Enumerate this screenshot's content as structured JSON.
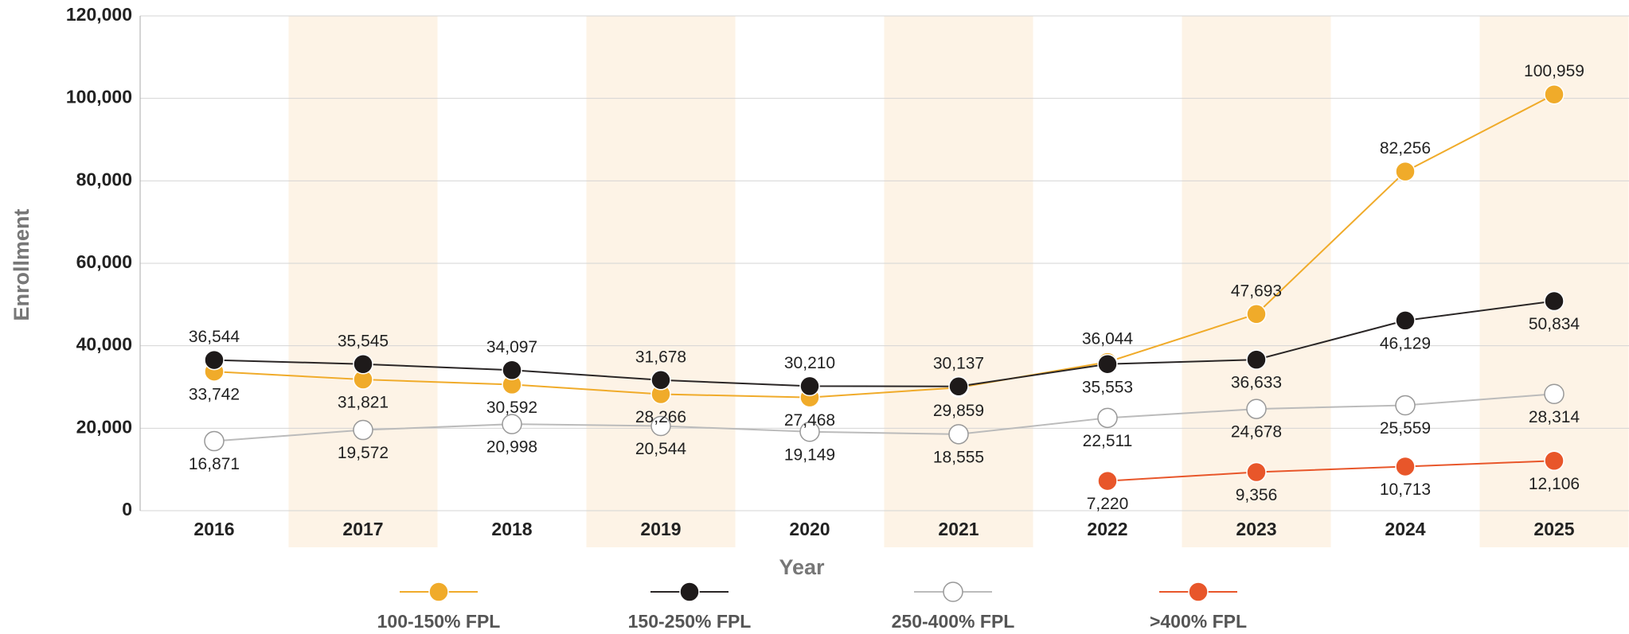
{
  "chart_data": {
    "type": "line",
    "x_label": "Year",
    "y_label": "Enrollment",
    "categories": [
      "2016",
      "2017",
      "2018",
      "2019",
      "2020",
      "2021",
      "2022",
      "2023",
      "2024",
      "2025"
    ],
    "ylim": [
      0,
      120000
    ],
    "yticks": [
      0,
      {
        "value": 20000,
        "label": "20,000"
      },
      {
        "value": 40000,
        "label": "40,000"
      },
      {
        "value": 60000,
        "label": "60,000"
      },
      {
        "value": 80000,
        "label": "80,000"
      },
      {
        "value": 100000,
        "label": "100,000"
      },
      {
        "value": 120000,
        "label": "120,000"
      }
    ],
    "grid": true,
    "legend": "bottom",
    "series": [
      {
        "name": "100-150% FPL",
        "color": "#f0ab2a",
        "marker_color": "#f0ab2a",
        "values": [
          33742,
          31821,
          30592,
          28266,
          27468,
          29859,
          36044,
          47693,
          82256,
          100959
        ],
        "value_labels": [
          "33,742",
          "31,821",
          "30,592",
          "28,266",
          "27,468",
          "29,859",
          "36,044",
          "47,693",
          "82,256",
          "100,959"
        ]
      },
      {
        "name": "150-250% FPL",
        "color": "#2a2626",
        "marker_color": "#1e1a1a",
        "values": [
          36544,
          35545,
          34097,
          31678,
          30210,
          30137,
          35553,
          36633,
          46129,
          50834
        ],
        "value_labels": [
          "36,544",
          "35,545",
          "34,097",
          "31,678",
          "30,210",
          "30,137",
          "35,553",
          "36,633",
          "46,129",
          "50,834"
        ]
      },
      {
        "name": "250-400% FPL",
        "color": "#bbbbbb",
        "marker_color": "#ffffff",
        "values": [
          16871,
          19572,
          20998,
          20544,
          19149,
          18555,
          22511,
          24678,
          25559,
          28314
        ],
        "value_labels": [
          "16,871",
          "19,572",
          "20,998",
          "20,544",
          "19,149",
          "18,555",
          "22,511",
          "24,678",
          "25,559",
          "28,314"
        ]
      },
      {
        "name": ">400% FPL",
        "color": "#e8562a",
        "marker_color": "#e8562a",
        "values": [
          null,
          null,
          null,
          null,
          null,
          null,
          7220,
          9356,
          10713,
          12106
        ],
        "value_labels": [
          null,
          null,
          null,
          null,
          null,
          null,
          "7,220",
          "9,356",
          "10,713",
          "12,106"
        ]
      }
    ]
  }
}
